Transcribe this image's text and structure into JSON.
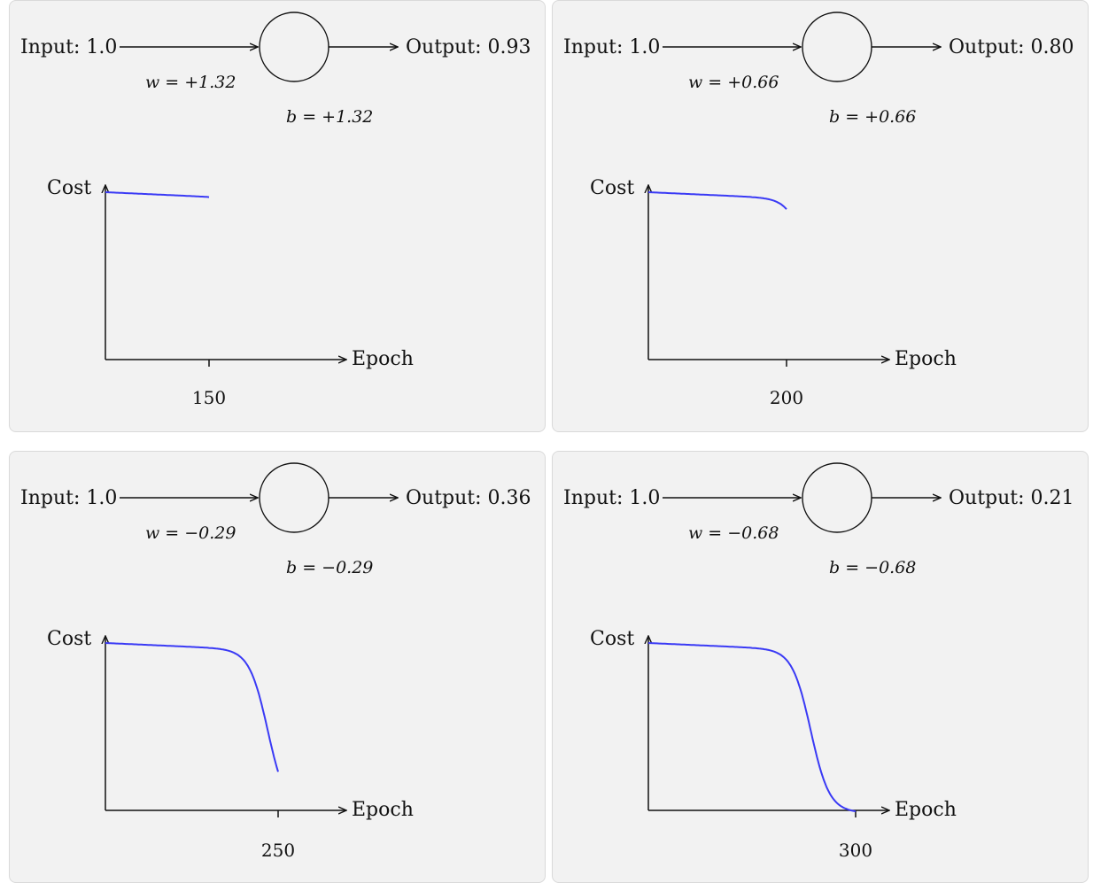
{
  "panels": [
    {
      "input_label": "Input: 1.0",
      "output_label": "Output: 0.93",
      "w_label": "w = +1.32",
      "b_label": "b = +1.32",
      "y_axis_label": "Cost",
      "x_axis_label": "Epoch",
      "epoch_tick": "150",
      "curve_epochs": 150
    },
    {
      "input_label": "Input: 1.0",
      "output_label": "Output: 0.80",
      "w_label": "w = +0.66",
      "b_label": "b = +0.66",
      "y_axis_label": "Cost",
      "x_axis_label": "Epoch",
      "epoch_tick": "200",
      "curve_epochs": 200
    },
    {
      "input_label": "Input: 1.0",
      "output_label": "Output: 0.36",
      "w_label": "w = −0.29",
      "b_label": "b = −0.29",
      "y_axis_label": "Cost",
      "x_axis_label": "Epoch",
      "epoch_tick": "250",
      "curve_epochs": 250
    },
    {
      "input_label": "Input: 1.0",
      "output_label": "Output: 0.21",
      "w_label": "w = −0.68",
      "b_label": "b = −0.68",
      "y_axis_label": "Cost",
      "x_axis_label": "Epoch",
      "epoch_tick": "300",
      "curve_epochs": 300
    }
  ],
  "colors": {
    "curve": "#3a3af5",
    "panel_bg": "#f2f2f2",
    "axis": "#111111"
  }
}
